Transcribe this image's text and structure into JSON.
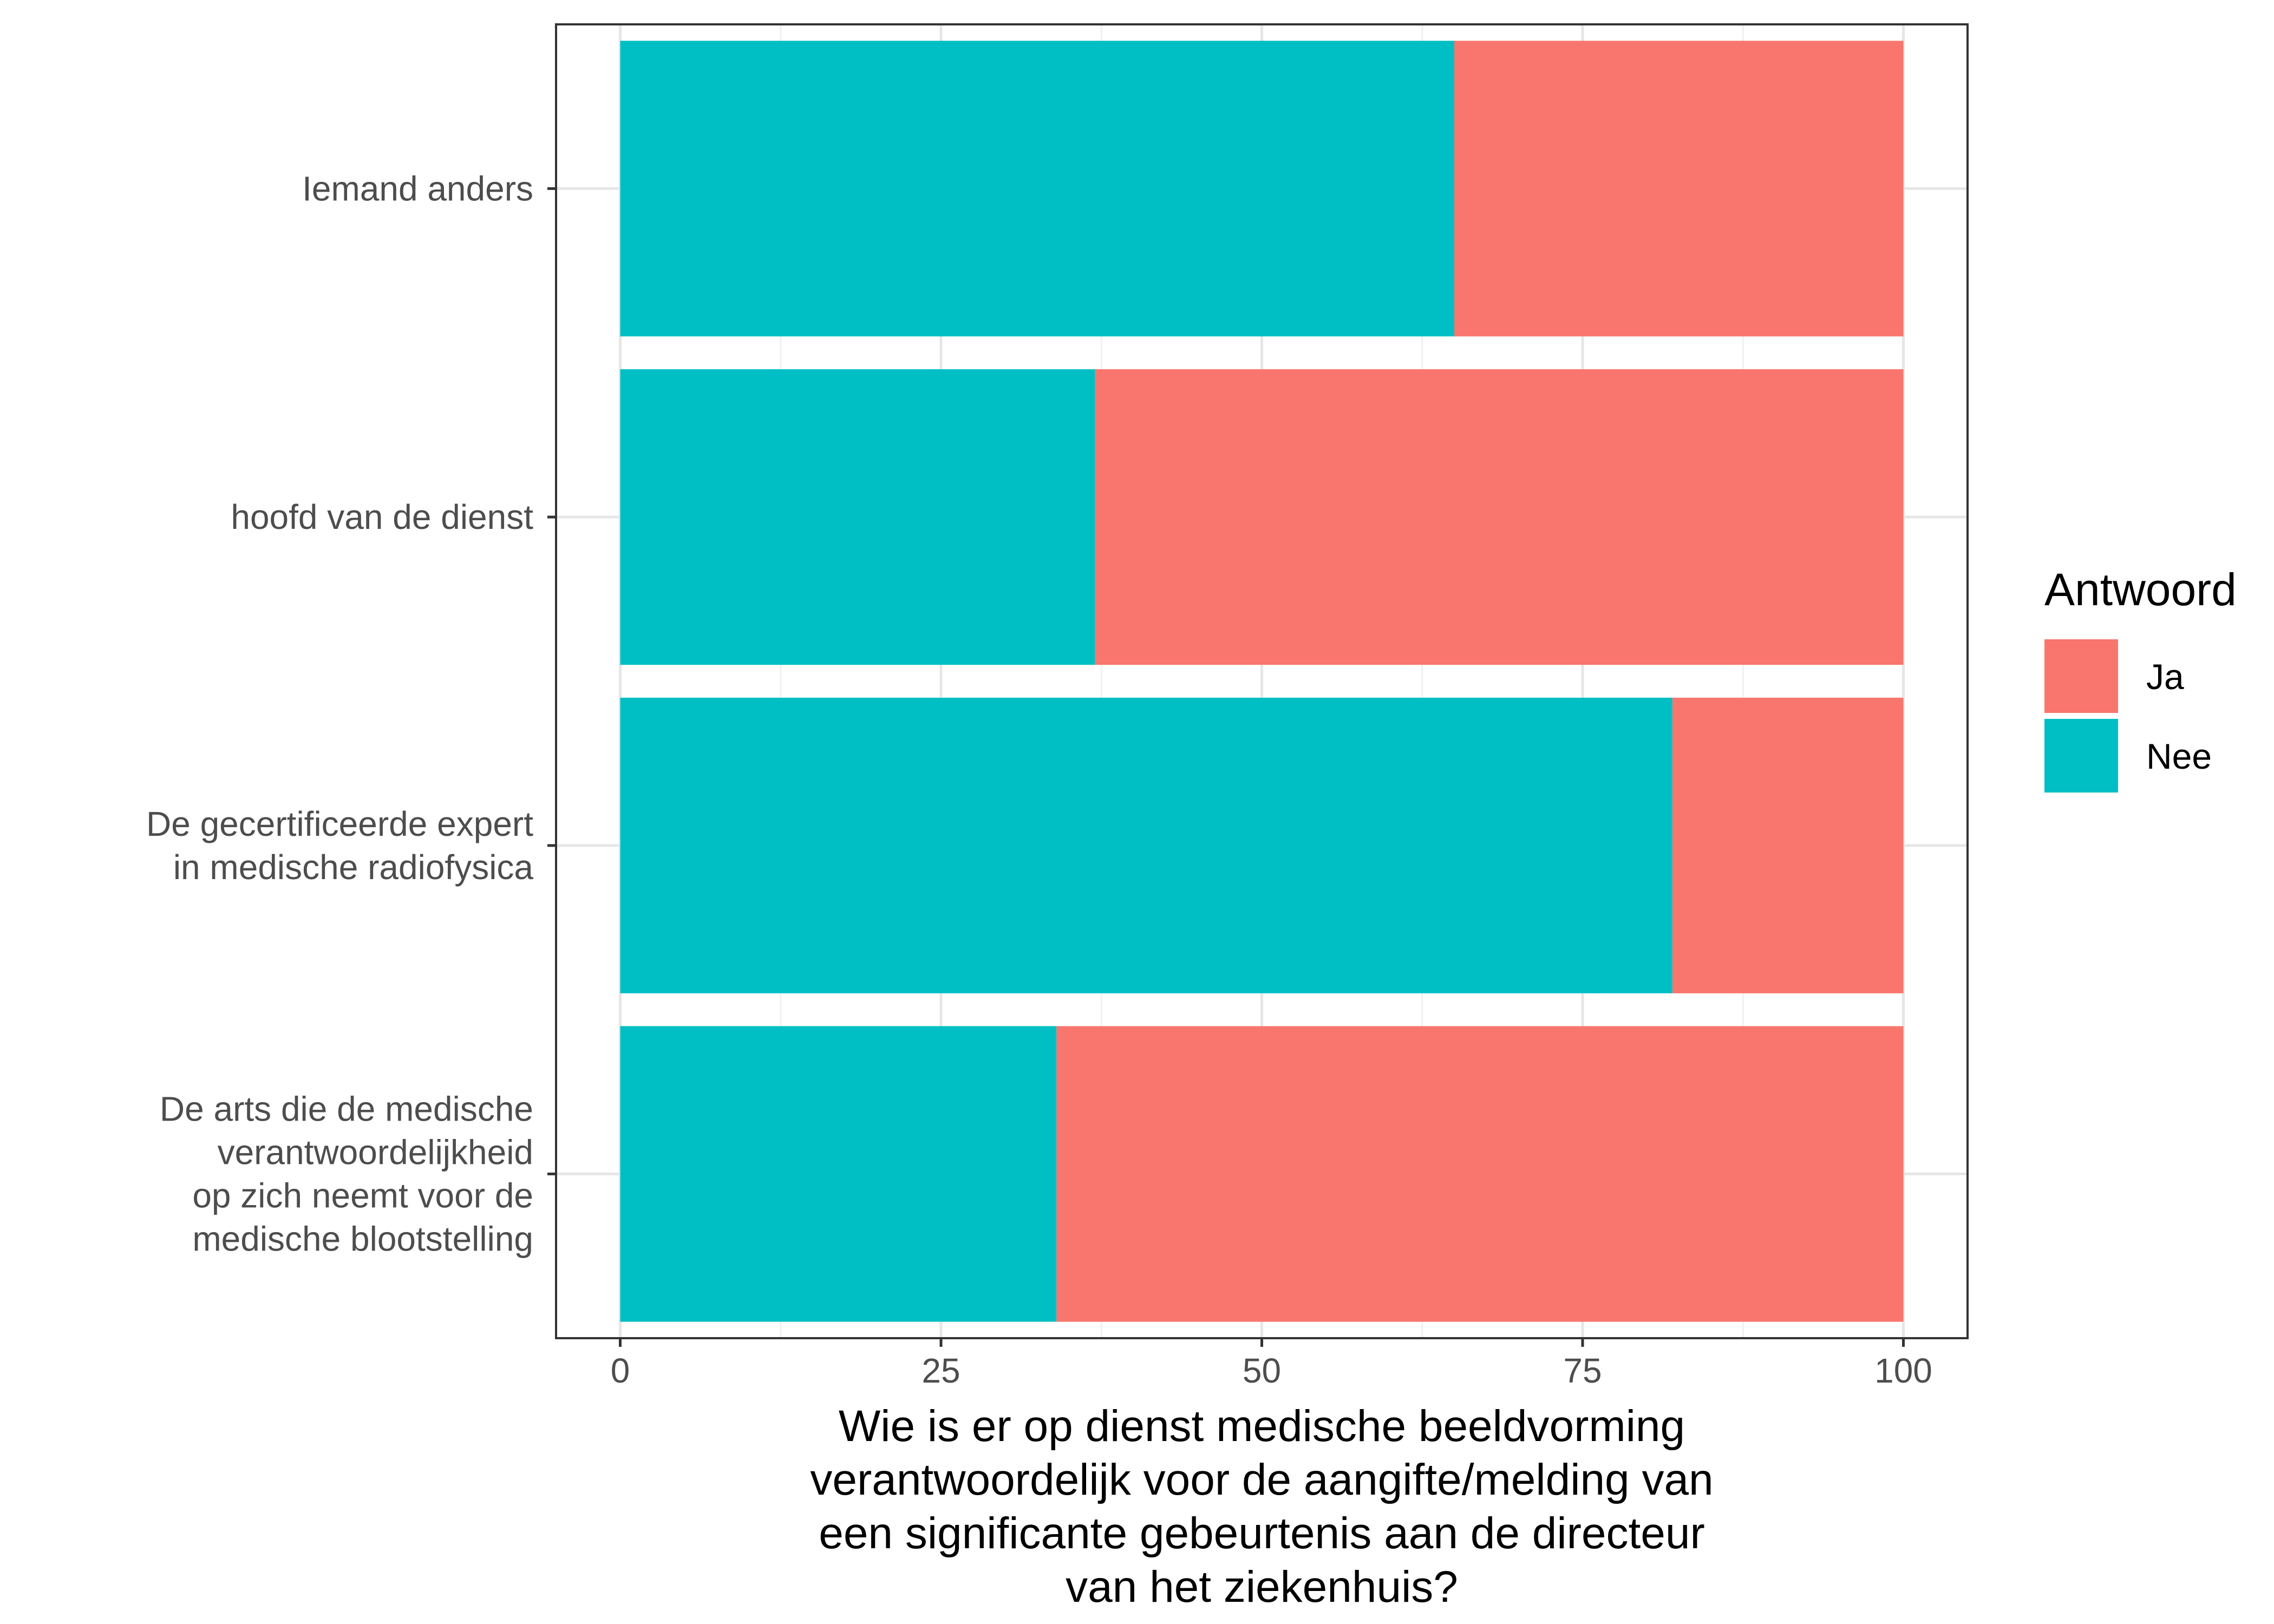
{
  "chart_data": {
    "type": "bar",
    "orientation": "horizontal",
    "stacked": true,
    "categories": [
      "De arts die de medische verantwoordelijkheid op zich neemt voor de medische blootstelling",
      "De gecertificeerde expert in medische radiofysica",
      "hoofd van de dienst",
      "Iemand anders"
    ],
    "category_lines": [
      [
        "De arts die de medische",
        "verantwoordelijkheid",
        "op zich neemt voor de",
        "medische blootstelling"
      ],
      [
        "De gecertificeerde expert",
        "in medische radiofysica"
      ],
      [
        "hoofd van de dienst"
      ],
      [
        "Iemand anders"
      ]
    ],
    "series": [
      {
        "name": "Nee",
        "color": "#00BFC4",
        "values": [
          34,
          82,
          37,
          65
        ]
      },
      {
        "name": "Ja",
        "color": "#F8766D",
        "values": [
          66,
          18,
          63,
          35
        ]
      }
    ],
    "title": "",
    "xlabel": "",
    "ylabel_lines": [
      "Wie is er op dienst medische beeldvorming",
      "verantwoordelijk voor de aangifte/melding van",
      "een significante gebeurtenis aan de directeur",
      "van het ziekenhuis?"
    ],
    "xlim": [
      -5,
      105
    ],
    "xticks": [
      0,
      25,
      50,
      75,
      100
    ],
    "grid": true,
    "legend": {
      "title": "Antwoord",
      "placement": "right",
      "items": [
        {
          "label": "Ja",
          "color": "#F8766D"
        },
        {
          "label": "Nee",
          "color": "#00BFC4"
        }
      ]
    }
  }
}
